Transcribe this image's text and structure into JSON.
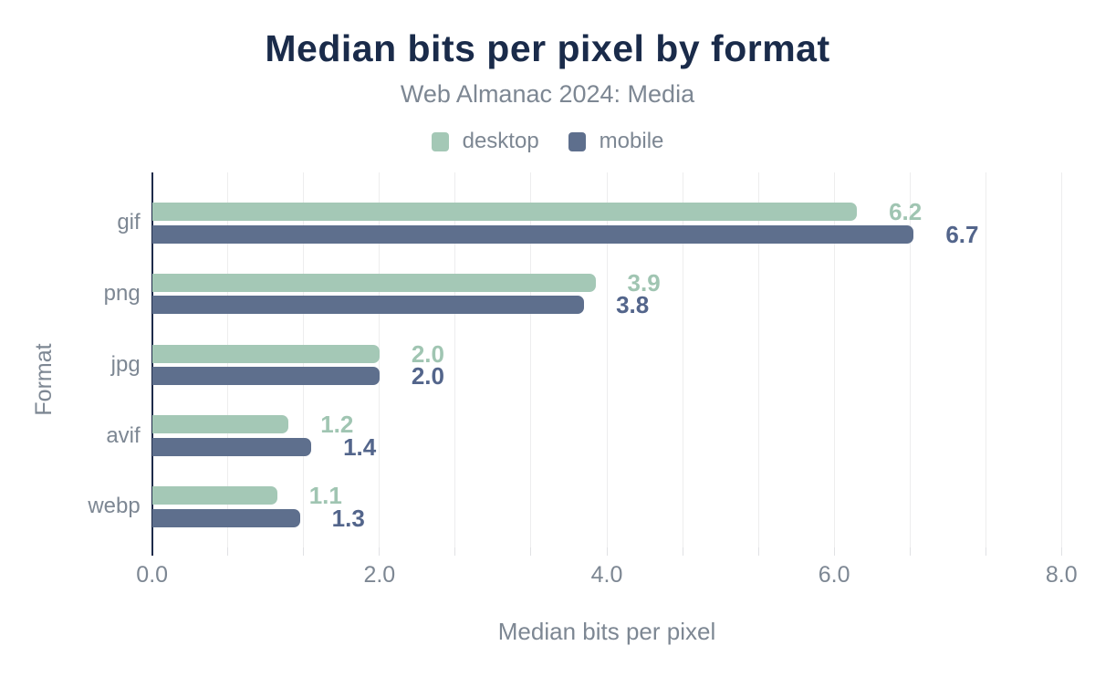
{
  "chart_data": {
    "type": "bar",
    "orientation": "horizontal",
    "title": "Median bits per pixel by format",
    "subtitle": "Web Almanac 2024: Media",
    "xlabel": "Median bits per pixel",
    "ylabel": "Format",
    "categories": [
      "gif",
      "png",
      "jpg",
      "avif",
      "webp"
    ],
    "series": [
      {
        "name": "desktop",
        "color": "#a4c8b6",
        "label_color": "#a0c5b2",
        "values": [
          6.2,
          3.9,
          2.0,
          1.2,
          1.1
        ],
        "labels": [
          "6.2",
          "3.9",
          "2.0",
          "1.2",
          "1.1"
        ]
      },
      {
        "name": "mobile",
        "color": "#5e6f8d",
        "label_color": "#53658b",
        "values": [
          6.7,
          3.8,
          2.0,
          1.4,
          1.3
        ],
        "labels": [
          "6.7",
          "3.8",
          "2.0",
          "1.4",
          "1.3"
        ]
      }
    ],
    "xlim": [
      0,
      8
    ],
    "x_ticks": [
      {
        "value": 0,
        "label": "0.0"
      },
      {
        "value": 2,
        "label": "2.0"
      },
      {
        "value": 4,
        "label": "4.0"
      },
      {
        "value": 6,
        "label": "6.0"
      },
      {
        "value": 8,
        "label": "8.0"
      }
    ],
    "x_minor_gridline_step": 0.6667,
    "grid": "vertical",
    "legend_position": "top-center"
  },
  "colors": {
    "background": "#ffffff",
    "title": "#1a2b4a",
    "axis_line": "#1e2b4a",
    "muted_text": "#7d8793",
    "gridline": "#ededee",
    "tick_mark": "#e0e1e4"
  }
}
